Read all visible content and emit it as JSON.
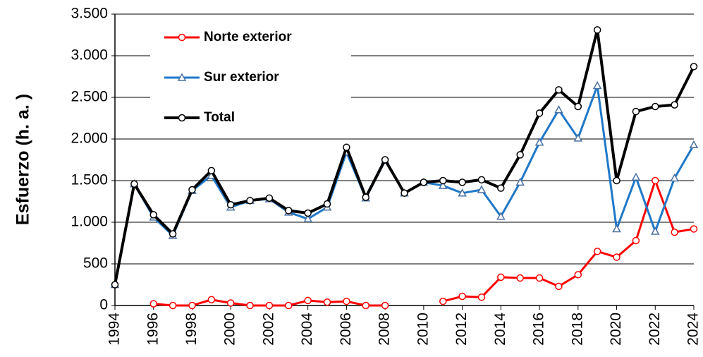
{
  "chart_data": {
    "type": "line",
    "y_label": "Esfuerzo (h. a. )",
    "x": [
      1994,
      1995,
      1996,
      1997,
      1998,
      1999,
      2000,
      2001,
      2002,
      2003,
      2004,
      2005,
      2006,
      2007,
      2008,
      2009,
      2010,
      2011,
      2012,
      2013,
      2014,
      2015,
      2016,
      2017,
      2018,
      2019,
      2020,
      2021,
      2022,
      2023,
      2024
    ],
    "series": [
      {
        "name": "Norte exterior",
        "color": "#ff0000",
        "marker": "circle",
        "values": [
          null,
          null,
          20,
          0,
          0,
          70,
          30,
          0,
          0,
          0,
          60,
          40,
          50,
          0,
          0,
          null,
          null,
          50,
          110,
          100,
          340,
          330,
          330,
          230,
          370,
          650,
          580,
          780,
          1500,
          880,
          920
        ]
      },
      {
        "name": "Sur exterior",
        "color": "#1f78c8",
        "marker": "triangle",
        "values": [
          250,
          1460,
          1060,
          840,
          1380,
          1560,
          1180,
          1260,
          1280,
          1120,
          1040,
          1180,
          1840,
          1290,
          1740,
          1350,
          1480,
          1440,
          1350,
          1390,
          1070,
          1480,
          1960,
          2350,
          2010,
          2640,
          920,
          1540,
          890,
          1530,
          1930
        ]
      },
      {
        "name": "Total",
        "color": "#000000",
        "marker": "circle",
        "values": [
          250,
          1460,
          1090,
          860,
          1390,
          1620,
          1210,
          1260,
          1290,
          1140,
          1110,
          1220,
          1900,
          1300,
          1750,
          1350,
          1480,
          1500,
          1480,
          1510,
          1410,
          1810,
          2310,
          2590,
          2390,
          3310,
          1500,
          2330,
          2390,
          2410,
          2870
        ]
      }
    ],
    "xlim": [
      1994,
      2024
    ],
    "xticks": [
      1994,
      1996,
      1998,
      2000,
      2002,
      2004,
      2006,
      2008,
      2010,
      2012,
      2014,
      2016,
      2018,
      2020,
      2022,
      2024
    ],
    "ylim": [
      0,
      3500
    ],
    "yticks": [
      0,
      500,
      {
        "value": 1000,
        "label": "1.000"
      },
      {
        "value": 1500,
        "label": "1.500"
      },
      {
        "value": 2000,
        "label": "2.000"
      },
      {
        "value": 2500,
        "label": "2.500"
      },
      {
        "value": 3000,
        "label": "3.000"
      },
      {
        "value": 3500,
        "label": "3.500"
      }
    ],
    "grid": true,
    "legend": "upper left"
  }
}
